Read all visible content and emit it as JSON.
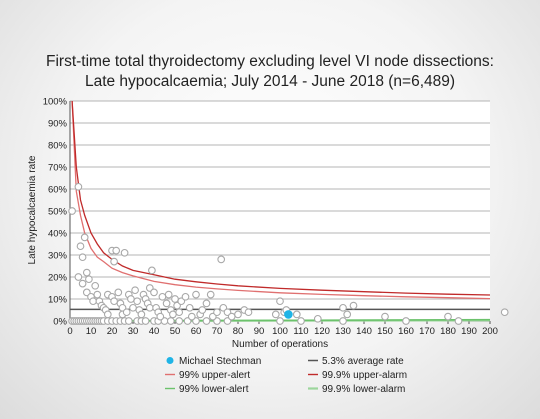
{
  "chart_data": {
    "type": "scatter",
    "title": [
      "First-time total thyroidectomy excluding level VI node dissections:",
      "Late hypocalcaemia; July 2014 - June 2018 (n=6,489)"
    ],
    "xlabel": "Number of operations",
    "ylabel": "Late hypocalcaemia rate",
    "xlim": [
      0,
      200
    ],
    "ylim": [
      0,
      100
    ],
    "x_ticks": [
      0,
      10,
      20,
      30,
      40,
      50,
      60,
      70,
      80,
      90,
      100,
      110,
      120,
      130,
      140,
      150,
      160,
      170,
      180,
      190,
      200
    ],
    "y_ticks": [
      0,
      10,
      20,
      30,
      40,
      50,
      60,
      70,
      80,
      90,
      100
    ],
    "y_tick_suffix": "%",
    "grid": "horizontal",
    "average_rate": 5.3,
    "colors": {
      "highlight": "#1fb4e6",
      "average": "#555555",
      "upper_alert": "#e07070",
      "upper_alarm": "#c02a2a",
      "lower_alert": "#6cc26c",
      "lower_alarm": "#9cd69c",
      "points": "#a8a8a8"
    },
    "highlight": {
      "name": "Michael Stechman",
      "x": 104,
      "y": 3.0
    },
    "series": [
      {
        "name": "Michael Stechman",
        "kind": "marker"
      },
      {
        "name": "5.3% average rate",
        "kind": "average"
      },
      {
        "name": "99% upper-alert",
        "kind": "upper_alert"
      },
      {
        "name": "99.9% upper-alarm",
        "kind": "upper_alarm"
      },
      {
        "name": "99% lower-alert",
        "kind": "lower_alert"
      },
      {
        "name": "99.9% lower-alarm",
        "kind": "lower_alarm"
      }
    ],
    "funnel": {
      "upper_alert": [
        [
          1,
          100
        ],
        [
          3,
          59
        ],
        [
          5,
          48
        ],
        [
          7,
          40
        ],
        [
          10,
          33
        ],
        [
          13,
          29
        ],
        [
          16,
          27
        ],
        [
          20,
          24
        ],
        [
          25,
          22
        ],
        [
          30,
          20.5
        ],
        [
          40,
          18
        ],
        [
          50,
          16.5
        ],
        [
          60,
          15.4
        ],
        [
          70,
          14.6
        ],
        [
          80,
          13.9
        ],
        [
          100,
          12.8
        ],
        [
          120,
          12.1
        ],
        [
          140,
          11.5
        ],
        [
          160,
          11
        ],
        [
          180,
          10.6
        ],
        [
          200,
          10.2
        ]
      ],
      "upper_alarm": [
        [
          1,
          100
        ],
        [
          3,
          70
        ],
        [
          5,
          55
        ],
        [
          7,
          48
        ],
        [
          10,
          40
        ],
        [
          13,
          35
        ],
        [
          16,
          31
        ],
        [
          20,
          28
        ],
        [
          25,
          25
        ],
        [
          30,
          23
        ],
        [
          40,
          21
        ],
        [
          50,
          19
        ],
        [
          60,
          17.8
        ],
        [
          70,
          16.8
        ],
        [
          80,
          16
        ],
        [
          100,
          14.8
        ],
        [
          120,
          14
        ],
        [
          140,
          13.3
        ],
        [
          160,
          12.7
        ],
        [
          180,
          12.2
        ],
        [
          200,
          11.8
        ]
      ],
      "lower_alert": [
        [
          1,
          0
        ],
        [
          200,
          0.6
        ]
      ],
      "lower_alarm": [
        [
          1,
          0
        ],
        [
          200,
          0.3
        ]
      ]
    },
    "points": [
      [
        1,
        0
      ],
      [
        2,
        0
      ],
      [
        3,
        0
      ],
      [
        4,
        0
      ],
      [
        5,
        0
      ],
      [
        6,
        0
      ],
      [
        7,
        0
      ],
      [
        8,
        0
      ],
      [
        9,
        0
      ],
      [
        10,
        0
      ],
      [
        11,
        0
      ],
      [
        12,
        0
      ],
      [
        13,
        0
      ],
      [
        14,
        0
      ],
      [
        15,
        0
      ],
      [
        16,
        0
      ],
      [
        18,
        0
      ],
      [
        20,
        0
      ],
      [
        22,
        0
      ],
      [
        24,
        0
      ],
      [
        26,
        0
      ],
      [
        28,
        0
      ],
      [
        32,
        0
      ],
      [
        34,
        0
      ],
      [
        36,
        0
      ],
      [
        40,
        0
      ],
      [
        42,
        0
      ],
      [
        45,
        0
      ],
      [
        48,
        0
      ],
      [
        52,
        0
      ],
      [
        56,
        0
      ],
      [
        60,
        0
      ],
      [
        65,
        0
      ],
      [
        70,
        0
      ],
      [
        75,
        0
      ],
      [
        100,
        0
      ],
      [
        110,
        0
      ],
      [
        130,
        0
      ],
      [
        160,
        0
      ],
      [
        1,
        50
      ],
      [
        4,
        61
      ],
      [
        4,
        20
      ],
      [
        5,
        34
      ],
      [
        6,
        29
      ],
      [
        6,
        17
      ],
      [
        7,
        38
      ],
      [
        8,
        22
      ],
      [
        9,
        19
      ],
      [
        8,
        13
      ],
      [
        10,
        11
      ],
      [
        11,
        9
      ],
      [
        12,
        16
      ],
      [
        13,
        12
      ],
      [
        14,
        9
      ],
      [
        15,
        7
      ],
      [
        16,
        6
      ],
      [
        17,
        5
      ],
      [
        18,
        3
      ],
      [
        18,
        12
      ],
      [
        20,
        32
      ],
      [
        21,
        27
      ],
      [
        22,
        32
      ],
      [
        20,
        11
      ],
      [
        21,
        9
      ],
      [
        23,
        13
      ],
      [
        24,
        8
      ],
      [
        25,
        6
      ],
      [
        26,
        31
      ],
      [
        25,
        3
      ],
      [
        27,
        4
      ],
      [
        28,
        12
      ],
      [
        29,
        10
      ],
      [
        30,
        6
      ],
      [
        31,
        14
      ],
      [
        32,
        9
      ],
      [
        33,
        5
      ],
      [
        34,
        3
      ],
      [
        35,
        12
      ],
      [
        36,
        10
      ],
      [
        37,
        8
      ],
      [
        38,
        6
      ],
      [
        39,
        23
      ],
      [
        38,
        15
      ],
      [
        40,
        13
      ],
      [
        41,
        6
      ],
      [
        42,
        4
      ],
      [
        43,
        2
      ],
      [
        44,
        11
      ],
      [
        46,
        8
      ],
      [
        47,
        12
      ],
      [
        48,
        5
      ],
      [
        49,
        3
      ],
      [
        50,
        10
      ],
      [
        51,
        7
      ],
      [
        52,
        4
      ],
      [
        53,
        9
      ],
      [
        55,
        11
      ],
      [
        57,
        6
      ],
      [
        58,
        2
      ],
      [
        60,
        12
      ],
      [
        62,
        3
      ],
      [
        63,
        5
      ],
      [
        65,
        8
      ],
      [
        67,
        12
      ],
      [
        68,
        2
      ],
      [
        70,
        4
      ],
      [
        72,
        28
      ],
      [
        73,
        6
      ],
      [
        75,
        4
      ],
      [
        77,
        2
      ],
      [
        80,
        3
      ],
      [
        83,
        5
      ],
      [
        85,
        4
      ],
      [
        98,
        3
      ],
      [
        100,
        9
      ],
      [
        102,
        4
      ],
      [
        103,
        5
      ],
      [
        108,
        3
      ],
      [
        118,
        1
      ],
      [
        130,
        6
      ],
      [
        132,
        3
      ],
      [
        135,
        7
      ],
      [
        150,
        2
      ],
      [
        180,
        2
      ],
      [
        185,
        0
      ],
      [
        207,
        4
      ]
    ]
  }
}
